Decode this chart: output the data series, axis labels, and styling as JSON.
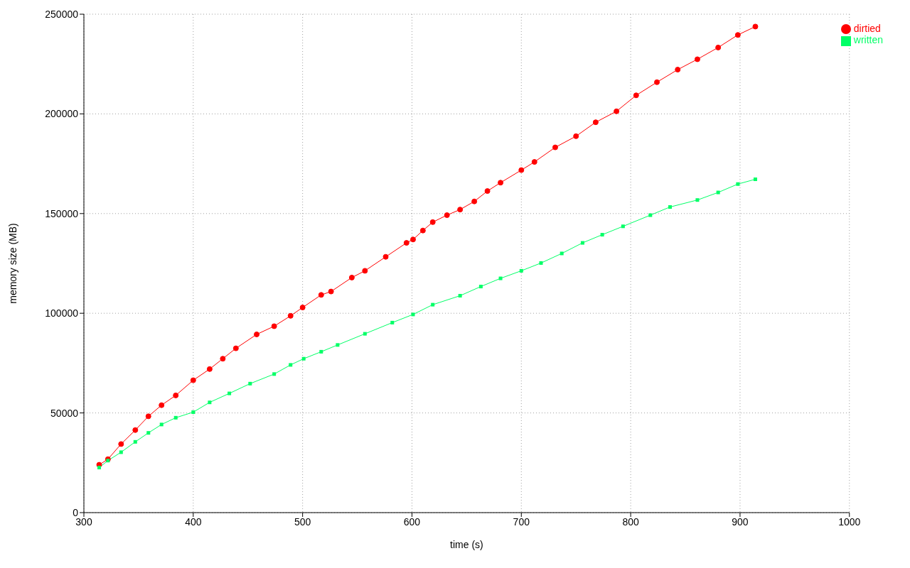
{
  "chart_data": {
    "type": "line",
    "xlabel": "time (s)",
    "ylabel": "memory size (MB)",
    "xlim": [
      300,
      1000
    ],
    "xticks": [
      300,
      400,
      500,
      600,
      700,
      800,
      900,
      1000
    ],
    "ylim": [
      0,
      250000
    ],
    "yticks": [
      0,
      50000,
      100000,
      150000,
      200000,
      250000
    ],
    "grid": true,
    "legend": "top right",
    "line_style": "solid",
    "series": [
      {
        "name": "dirtied",
        "color": "#ff0000",
        "marker": "circle",
        "x": [
          314,
          322,
          334,
          347,
          359,
          371,
          384,
          400,
          415,
          427,
          439,
          458,
          474,
          489,
          500,
          517,
          526,
          545,
          557,
          576,
          595,
          601,
          610,
          619,
          632,
          644,
          657,
          669,
          681,
          700,
          712,
          731,
          750,
          768,
          787,
          805,
          824,
          843,
          861,
          880,
          898,
          914
        ],
        "values": [
          24000,
          26800,
          34400,
          41400,
          48300,
          53900,
          58800,
          66400,
          72000,
          77200,
          82400,
          89400,
          93500,
          98700,
          102900,
          109200,
          110900,
          117900,
          121300,
          128300,
          135300,
          137000,
          141500,
          145700,
          149200,
          152000,
          156100,
          161300,
          165500,
          171800,
          175900,
          183200,
          188800,
          195800,
          201300,
          209300,
          215900,
          222200,
          227400,
          233300,
          239600,
          243800
        ]
      },
      {
        "name": "written",
        "color": "#00ff66",
        "marker": "square",
        "x": [
          314,
          322,
          334,
          347,
          359,
          371,
          384,
          400,
          415,
          433,
          452,
          474,
          489,
          501,
          517,
          532,
          557,
          582,
          601,
          619,
          644,
          663,
          681,
          700,
          718,
          737,
          756,
          774,
          793,
          818,
          836,
          861,
          880,
          898,
          914
        ],
        "values": [
          22600,
          26100,
          30300,
          35500,
          40000,
          44200,
          47600,
          50400,
          55300,
          59800,
          64700,
          69500,
          74100,
          77200,
          80700,
          84100,
          89700,
          95300,
          99400,
          104300,
          108800,
          113400,
          117500,
          121300,
          125200,
          130000,
          135300,
          139400,
          143600,
          149200,
          153300,
          156800,
          160600,
          164800,
          167200
        ]
      }
    ]
  }
}
